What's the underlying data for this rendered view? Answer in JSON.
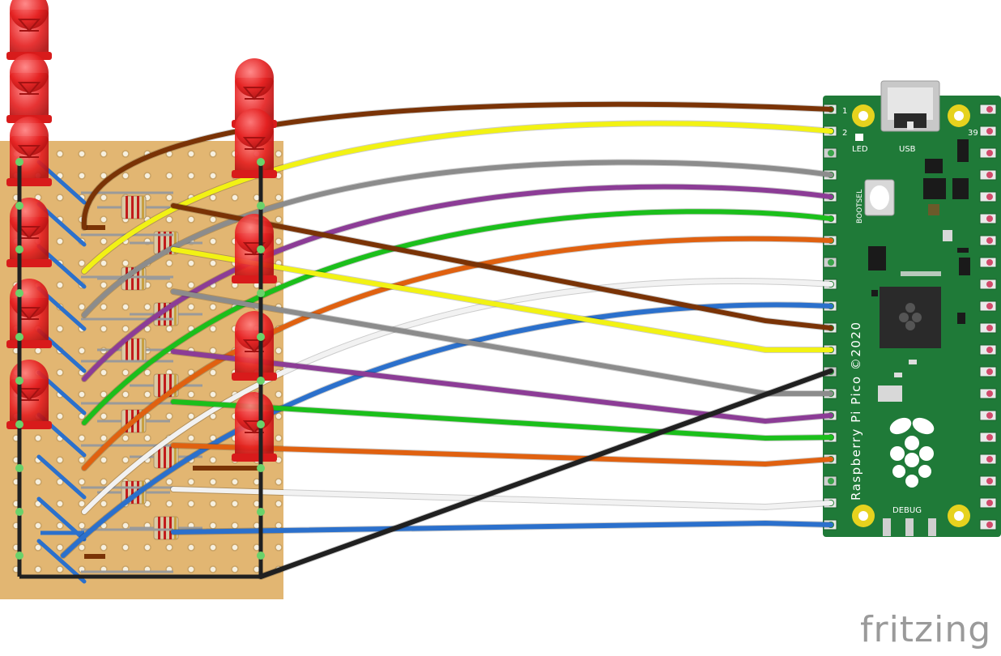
{
  "pico": {
    "board_label": "Raspberry Pi Pico ©2020",
    "led_label": "LED",
    "usb_label": "USB",
    "bootsel_label": "BOOTSEL",
    "debug_label": "DEBUG",
    "pin_1": "1",
    "pin_2": "2",
    "pin_39": "39"
  },
  "brand": {
    "name": "fritzing"
  },
  "wire_colors": {
    "brown": "#7a3306",
    "yellow": "#f2f214",
    "gray": "#8c8c8c",
    "purple": "#8c3c96",
    "green": "#1bbf1b",
    "orange": "#e06110",
    "white": "#f2f2f2",
    "blue": "#2b70cc",
    "black": "#202020"
  },
  "colors": {
    "pcb": "#1f7a38",
    "perfboard": "#e2b672",
    "led": "#e52222",
    "pad": "#e6d21e"
  },
  "leds": {
    "count": 10,
    "color": "red"
  },
  "resistors": {
    "count": 10
  }
}
